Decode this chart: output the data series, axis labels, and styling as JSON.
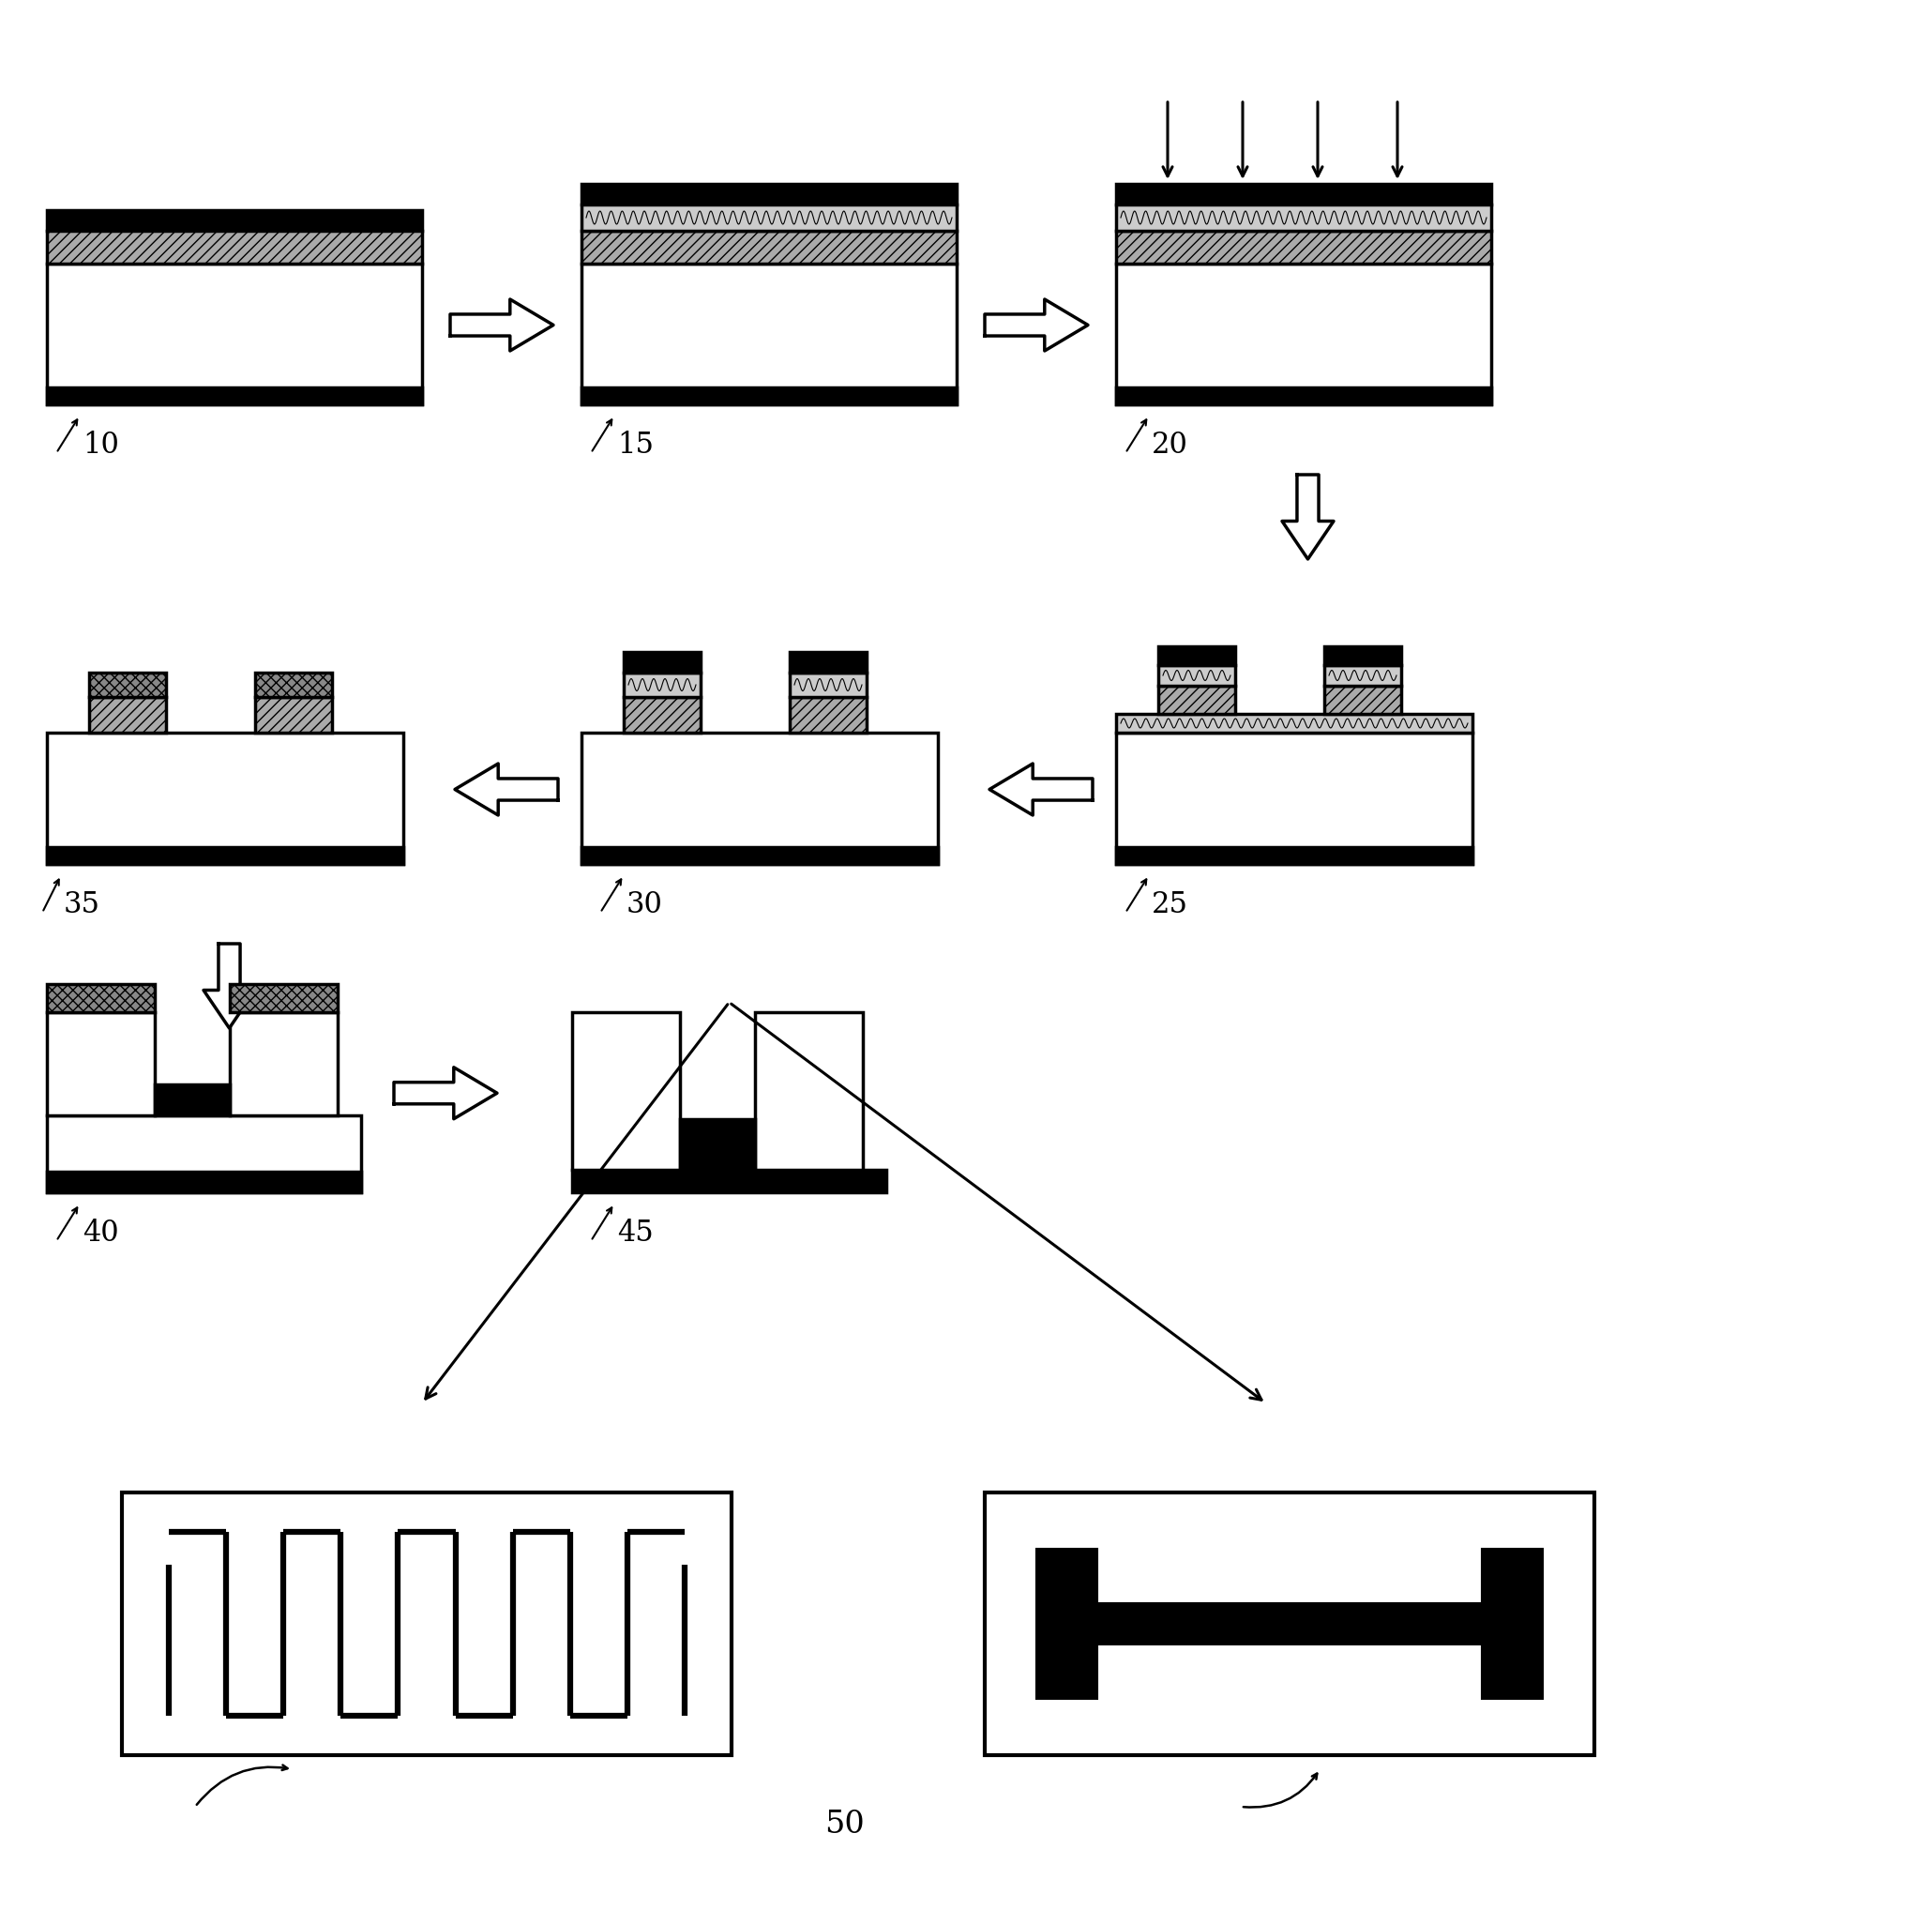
{
  "bg_color": "#ffffff",
  "label_10": "10",
  "label_15": "15",
  "label_20": "20",
  "label_25": "25",
  "label_30": "30",
  "label_35": "35",
  "label_40": "40",
  "label_45": "45",
  "label_50": "50"
}
